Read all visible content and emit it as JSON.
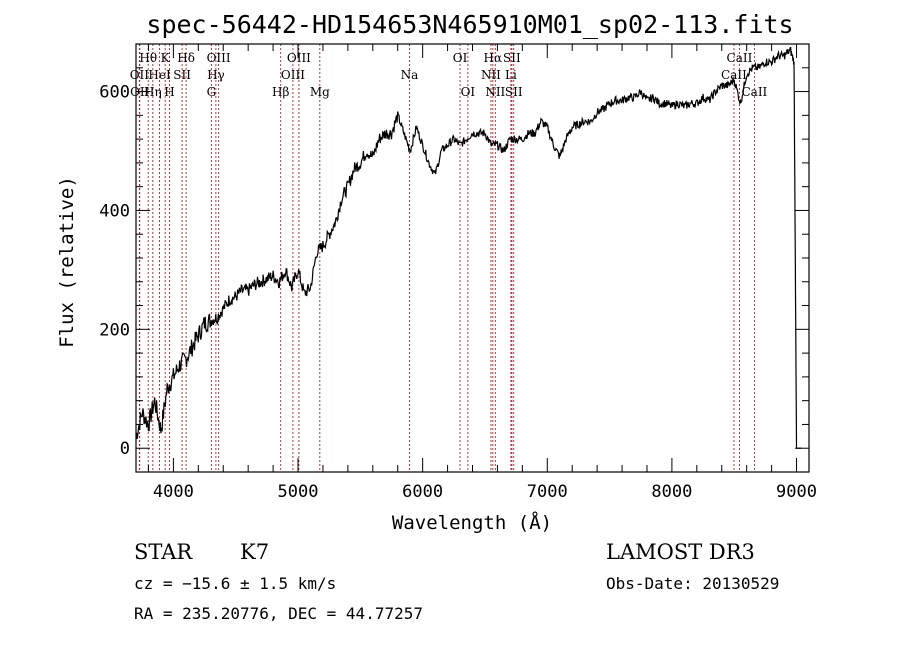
{
  "chart_data": {
    "type": "line",
    "title": "spec-56442-HD154653N465910M01_sp02-113.fits",
    "xlabel": "Wavelength (Å)",
    "ylabel": "Flux (relative)",
    "xlim": [
      3700,
      9100
    ],
    "ylim": [
      -40,
      680
    ],
    "xticks": [
      4000,
      5000,
      6000,
      7000,
      8000,
      9000
    ],
    "yticks": [
      0,
      200,
      400,
      600
    ],
    "series": [
      {
        "x": [
          3700,
          3750,
          3800,
          3850,
          3900,
          3950,
          4000,
          4050,
          4100,
          4150,
          4200,
          4250,
          4300,
          4350,
          4400,
          4450,
          4500,
          4550,
          4600,
          4650,
          4700,
          4750,
          4800,
          4850,
          4900,
          4950,
          5000,
          5050,
          5100,
          5150,
          5200,
          5250,
          5300,
          5350,
          5400,
          5450,
          5500,
          5550,
          5600,
          5650,
          5700,
          5750,
          5800,
          5850,
          5900,
          5950,
          6000,
          6050,
          6100,
          6150,
          6200,
          6250,
          6300,
          6350,
          6400,
          6450,
          6500,
          6550,
          6600,
          6650,
          6700,
          6750,
          6800,
          6850,
          6900,
          6950,
          7000,
          7050,
          7100,
          7150,
          7200,
          7250,
          7300,
          7350,
          7400,
          7450,
          7500,
          7550,
          7600,
          7650,
          7700,
          7750,
          7800,
          7850,
          7900,
          7950,
          8000,
          8050,
          8100,
          8150,
          8200,
          8250,
          8300,
          8350,
          8400,
          8450,
          8500,
          8550,
          8600,
          8650,
          8700,
          8750,
          8800,
          8850,
          8900,
          8950,
          8980,
          9000
        ],
        "y": [
          20,
          60,
          40,
          80,
          30,
          100,
          120,
          140,
          150,
          170,
          190,
          210,
          215,
          220,
          235,
          250,
          255,
          265,
          265,
          275,
          280,
          285,
          290,
          280,
          300,
          270,
          300,
          260,
          270,
          330,
          340,
          360,
          380,
          420,
          440,
          470,
          480,
          500,
          490,
          520,
          530,
          530,
          560,
          530,
          500,
          540,
          510,
          480,
          460,
          500,
          510,
          520,
          510,
          520,
          530,
          530,
          530,
          510,
          510,
          500,
          520,
          520,
          520,
          530,
          530,
          550,
          540,
          510,
          490,
          520,
          540,
          545,
          550,
          550,
          565,
          570,
          580,
          585,
          585,
          590,
          590,
          600,
          585,
          590,
          580,
          580,
          575,
          580,
          575,
          580,
          580,
          590,
          585,
          600,
          610,
          610,
          620,
          580,
          630,
          640,
          640,
          650,
          650,
          660,
          660,
          670,
          650,
          0
        ]
      }
    ],
    "emission_lines": [
      {
        "name": "Hθ",
        "x": 3798,
        "row": 1
      },
      {
        "name": "OII",
        "x": 3727,
        "row": 2
      },
      {
        "name": "OII",
        "x": 3730,
        "row": 3
      },
      {
        "name": "Hη",
        "x": 3835,
        "row": 3
      },
      {
        "name": "K",
        "x": 3934,
        "row": 1
      },
      {
        "name": "HeI",
        "x": 3889,
        "row": 2
      },
      {
        "name": "H",
        "x": 3969,
        "row": 3
      },
      {
        "name": "Hδ",
        "x": 4102,
        "row": 1
      },
      {
        "name": "SII",
        "x": 4070,
        "row": 2
      },
      {
        "name": "OIII",
        "x": 4363,
        "row": 1
      },
      {
        "name": "Hγ",
        "x": 4341,
        "row": 2
      },
      {
        "name": "G",
        "x": 4305,
        "row": 3
      },
      {
        "name": "Hβ",
        "x": 4861,
        "row": 3
      },
      {
        "name": "OIII",
        "x": 5007,
        "row": 1
      },
      {
        "name": "OIII",
        "x": 4959,
        "row": 2
      },
      {
        "name": "Mg",
        "x": 5175,
        "row": 3
      },
      {
        "name": "Na",
        "x": 5894,
        "row": 2
      },
      {
        "name": "OI",
        "x": 6300,
        "row": 1
      },
      {
        "name": "OI",
        "x": 6363,
        "row": 3
      },
      {
        "name": "Hα",
        "x": 6563,
        "row": 1
      },
      {
        "name": "NII",
        "x": 6548,
        "row": 2
      },
      {
        "name": "NII",
        "x": 6583,
        "row": 3
      },
      {
        "name": "SII",
        "x": 6716,
        "row": 1
      },
      {
        "name": "Li",
        "x": 6708,
        "row": 2
      },
      {
        "name": "SII",
        "x": 6731,
        "row": 3
      },
      {
        "name": "CaII",
        "x": 8542,
        "row": 1
      },
      {
        "name": "CaII",
        "x": 8498,
        "row": 2
      },
      {
        "name": "CaII",
        "x": 8662,
        "row": 3
      }
    ],
    "grid": false,
    "colors": {
      "spectrum": "#000000",
      "line_markers": "#b22222"
    }
  },
  "info": {
    "object_class": "STAR",
    "subclass": "K7",
    "survey": "LAMOST DR3",
    "redshift_text": "cz = −15.6 ± 1.5 km/s",
    "obs_date": "Obs-Date: 20130529",
    "coords": "RA = 235.20776, DEC =  44.77257"
  }
}
